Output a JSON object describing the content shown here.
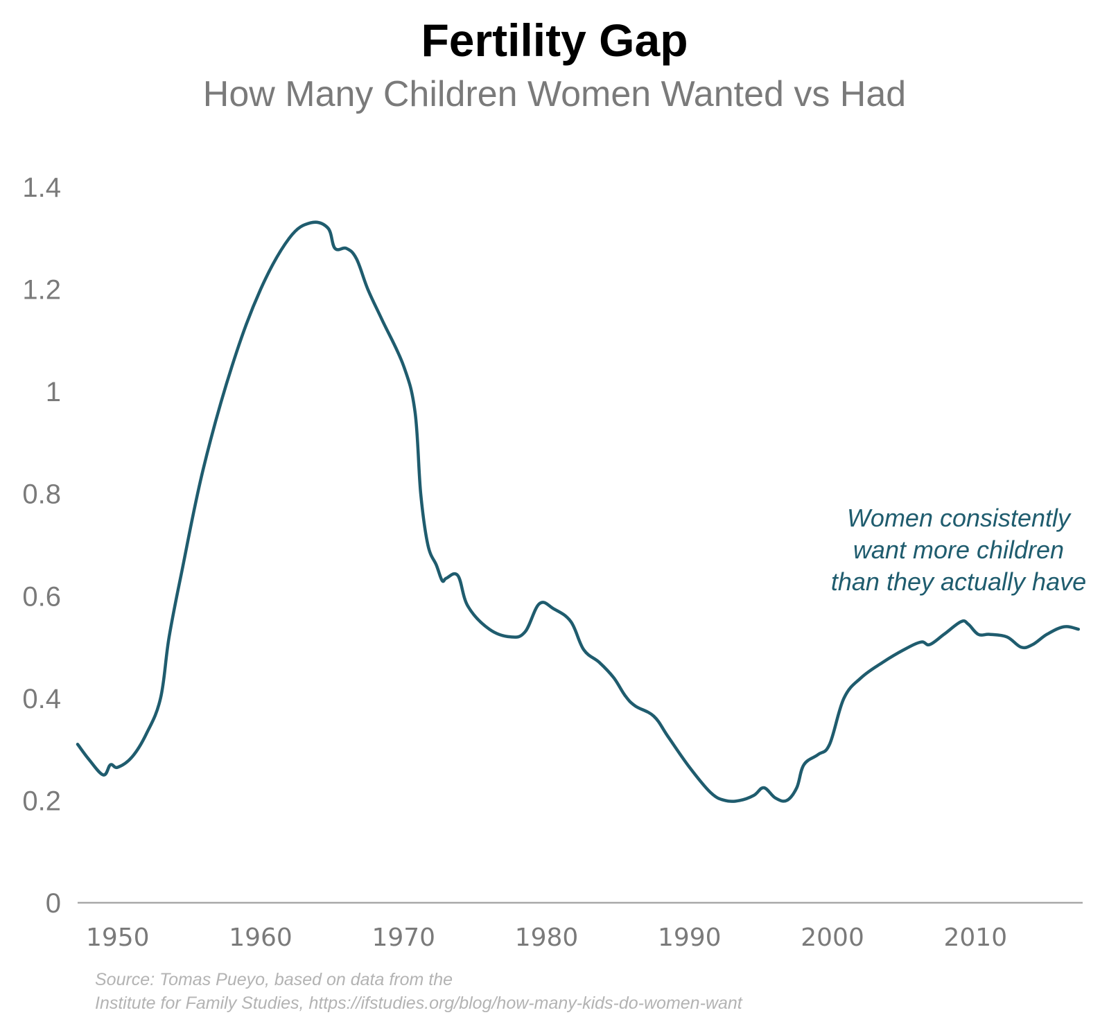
{
  "colors": {
    "line": "#1f5c6e",
    "axis": "#a8a8a8",
    "tick_label": "#7a7a7a",
    "annotation": "#1f5c6e",
    "source": "#b3b3b3"
  },
  "source": {
    "line1": "Source: Tomas Pueyo, based on data from the",
    "line2": "Institute for Family Studies, https://ifstudies.org/blog/how-many-kids-do-women-want"
  },
  "chart_data": {
    "type": "line",
    "title": "Fertility Gap",
    "subtitle": "How Many Children Women Wanted vs Had",
    "xlabel": "",
    "ylabel": "",
    "xlim": [
      1947.2,
      2017.5
    ],
    "ylim": [
      0,
      1.4
    ],
    "x_ticks": [
      "1950",
      "1960",
      "1970",
      "1980",
      "1990",
      "2000",
      "2010"
    ],
    "y_ticks": [
      "0",
      "0.2",
      "0.4",
      "0.6",
      "0.8",
      "1",
      "1.2",
      "1.4"
    ],
    "grid": false,
    "annotation": {
      "lines": [
        "Women consistently",
        "want more children",
        "than they actually have"
      ]
    },
    "series": [
      {
        "x": [
          1947.2,
          1948.0,
          1949.0,
          1949.5,
          1950.0,
          1951.0,
          1952.0,
          1953.0,
          1953.6,
          1954.5,
          1956.0,
          1958.0,
          1960.0,
          1962.0,
          1963.5,
          1964.7,
          1965.2,
          1966.0,
          1966.7,
          1967.5,
          1968.5,
          1970.0,
          1970.8,
          1971.2,
          1971.7,
          1972.3,
          1972.7,
          1973.0,
          1973.8,
          1974.5,
          1976.0,
          1977.5,
          1978.5,
          1979.5,
          1980.5,
          1981.7,
          1982.6,
          1983.7,
          1984.7,
          1985.5,
          1986.2,
          1987.5,
          1988.5,
          1990.0,
          1991.5,
          1992.5,
          1993.5,
          1994.5,
          1995.2,
          1996.0,
          1996.8,
          1997.5,
          1998.0,
          1999.0,
          1999.8,
          2000.8,
          2002.0,
          2003.5,
          2005.0,
          2006.2,
          2006.8,
          2007.8,
          2009.0,
          2009.5,
          2010.2,
          2011.0,
          2012.2,
          2013.2,
          2014.0,
          2015.0,
          2016.2,
          2017.2
        ],
        "y": [
          0.31,
          0.28,
          0.25,
          0.27,
          0.265,
          0.285,
          0.33,
          0.4,
          0.52,
          0.65,
          0.85,
          1.05,
          1.2,
          1.3,
          1.33,
          1.32,
          1.28,
          1.28,
          1.26,
          1.2,
          1.14,
          1.05,
          0.96,
          0.8,
          0.7,
          0.66,
          0.63,
          0.635,
          0.64,
          0.58,
          0.535,
          0.52,
          0.53,
          0.585,
          0.575,
          0.55,
          0.495,
          0.47,
          0.44,
          0.405,
          0.385,
          0.365,
          0.325,
          0.265,
          0.215,
          0.2,
          0.2,
          0.21,
          0.225,
          0.205,
          0.2,
          0.225,
          0.27,
          0.29,
          0.31,
          0.4,
          0.44,
          0.47,
          0.495,
          0.51,
          0.505,
          0.525,
          0.55,
          0.545,
          0.525,
          0.525,
          0.52,
          0.5,
          0.505,
          0.525,
          0.54,
          0.535
        ]
      }
    ]
  }
}
